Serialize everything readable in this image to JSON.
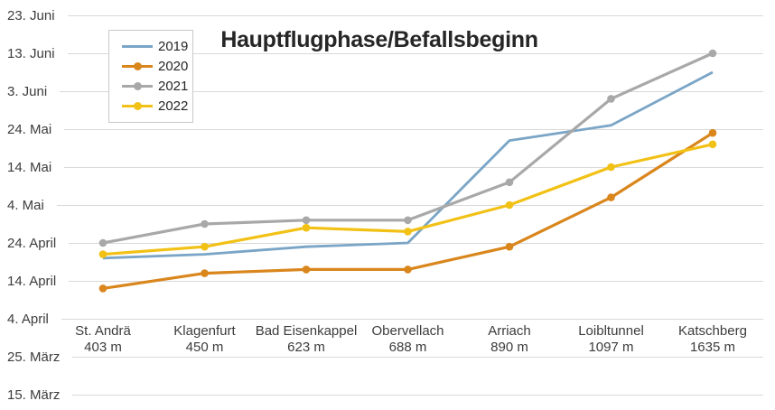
{
  "chart_data": {
    "type": "line",
    "title": "Hauptflugphase/Befallsbeginn",
    "grid": true,
    "legend_position": "top-left",
    "y_axis": {
      "tick_labels": [
        "23. Juni",
        "13. Juni",
        "3. Juni",
        "24. Mai",
        "14. Mai",
        "4. Mai",
        "24. April",
        "14. April",
        "4. April",
        "25. März",
        "15. März"
      ],
      "range": [
        "15. März",
        "23. Juni"
      ],
      "tick_step_days": 10
    },
    "categories": [
      {
        "name": "St. Andrä",
        "altitude": "403 m"
      },
      {
        "name": "Klagenfurt",
        "altitude": "450 m"
      },
      {
        "name": "Bad Eisenkappel",
        "altitude": "623 m"
      },
      {
        "name": "Obervellach",
        "altitude": "688 m"
      },
      {
        "name": "Arriach",
        "altitude": "890 m"
      },
      {
        "name": "Loibltunnel",
        "altitude": "1097 m"
      },
      {
        "name": "Katschberg",
        "altitude": "1635 m"
      }
    ],
    "series": [
      {
        "name": "2019",
        "color": "#7aa5c6",
        "marker": false,
        "dates": [
          "20. April",
          "21. April",
          "23. April",
          "24. April",
          "21. Mai",
          "25. Mai",
          "8. Juni"
        ],
        "days_from_15_march": [
          36,
          37,
          39,
          40,
          67,
          71,
          85
        ]
      },
      {
        "name": "2020",
        "color": "#d9861c",
        "marker": true,
        "dates": [
          "12. April",
          "16. April",
          "17. April",
          "17. April",
          "23. April",
          "6. Mai",
          "23. Mai"
        ],
        "days_from_15_march": [
          28,
          32,
          33,
          33,
          39,
          52,
          69
        ]
      },
      {
        "name": "2021",
        "color": "#a8a8a8",
        "marker": true,
        "dates": [
          "24. April",
          "29. April",
          "30. April",
          "30. April",
          "10. Mai",
          "1. Juni",
          "13. Juni"
        ],
        "days_from_15_march": [
          40,
          45,
          46,
          46,
          56,
          78,
          90
        ]
      },
      {
        "name": "2022",
        "color": "#f2c115",
        "marker": true,
        "dates": [
          "21. April",
          "23. April",
          "28. April",
          "27. April",
          "4. Mai",
          "14. Mai",
          "20. Mai"
        ],
        "days_from_15_march": [
          37,
          39,
          44,
          43,
          50,
          60,
          66
        ]
      }
    ]
  }
}
